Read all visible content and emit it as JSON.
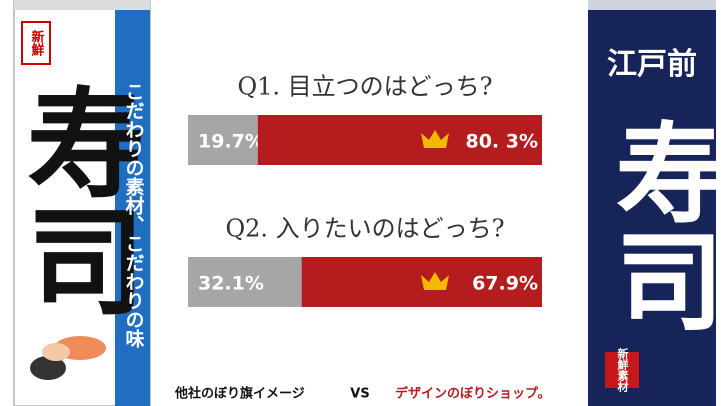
{
  "banners": {
    "left": {
      "stamp": "新鮮",
      "main": "寿司",
      "tagline": "こだわりの素材、こだわりの味"
    },
    "right": {
      "top": "江戸前",
      "main": "寿司",
      "stamp": "新鮮素材"
    }
  },
  "chart_data": [
    {
      "type": "stacked_bar",
      "title": "Q1. 目立つのはどっち?",
      "values": [
        19.7,
        80.3
      ],
      "value_labels": [
        "19.7%",
        "80. 3%"
      ],
      "colors": [
        "#a6a6a6",
        "#b51c1e"
      ],
      "xlim": [
        0,
        100
      ]
    },
    {
      "type": "stacked_bar",
      "title": "Q2. 入りたいのはどっち?",
      "values": [
        32.1,
        67.9
      ],
      "value_labels": [
        "32.1%",
        "67.9%"
      ],
      "colors": [
        "#a6a6a6",
        "#b51c1e"
      ],
      "xlim": [
        0,
        100
      ]
    }
  ],
  "footer": {
    "left": "他社のぼり旗イメージ",
    "vs": "VS",
    "right": "デザインのぼりショップ。"
  }
}
